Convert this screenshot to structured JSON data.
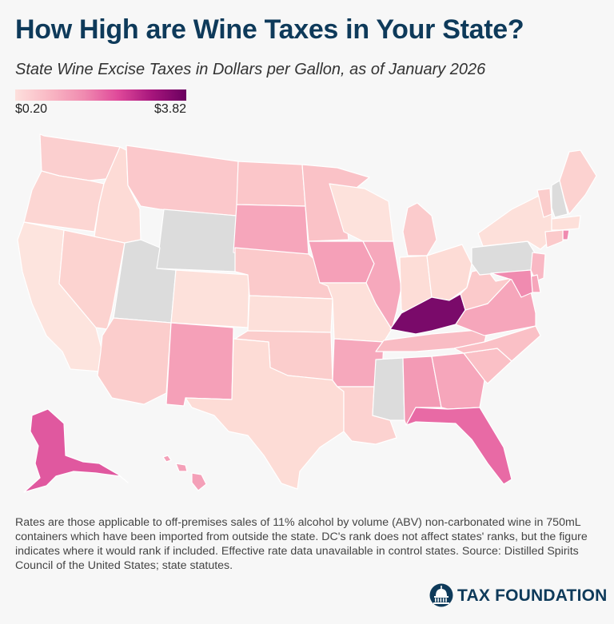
{
  "title": "How High are Wine Taxes in Your State?",
  "subtitle": "State Wine Excise Taxes in Dollars per Gallon, as of January 2026",
  "legend": {
    "min_label": "$0.20",
    "max_label": "$3.82",
    "colors": [
      "#fde0dd",
      "#f9b8c4",
      "#f08bb0",
      "#e0499a",
      "#a6157c",
      "#6a005f"
    ]
  },
  "colors": {
    "no_data": "#dcdcdc",
    "title": "#0e3a5a",
    "background": "#f7f7f7"
  },
  "map_data": {
    "min_value": 0.2,
    "max_value": 3.82,
    "states": [
      {
        "state": "WA",
        "fill": "#fbcfcf"
      },
      {
        "state": "OR",
        "fill": "#fcd6d3"
      },
      {
        "state": "CA",
        "fill": "#fde4de"
      },
      {
        "state": "NV",
        "fill": "#fcd3d0"
      },
      {
        "state": "ID",
        "fill": "#fddbd6"
      },
      {
        "state": "MT",
        "fill": "#fbc8cb"
      },
      {
        "state": "WY",
        "fill": "#dcdcdc",
        "status": "control state"
      },
      {
        "state": "UT",
        "fill": "#dcdcdc",
        "status": "control state"
      },
      {
        "state": "AZ",
        "fill": "#fbcdcc"
      },
      {
        "state": "CO",
        "fill": "#fde1db"
      },
      {
        "state": "NM",
        "fill": "#f5a0b8"
      },
      {
        "state": "ND",
        "fill": "#fbc6c9"
      },
      {
        "state": "SD",
        "fill": "#f6a6bb"
      },
      {
        "state": "NE",
        "fill": "#fbcacb"
      },
      {
        "state": "KS",
        "fill": "#fde0da"
      },
      {
        "state": "OK",
        "fill": "#fbcdcc"
      },
      {
        "state": "TX",
        "fill": "#fddcd6"
      },
      {
        "state": "MN",
        "fill": "#fac2c7"
      },
      {
        "state": "IA",
        "fill": "#f5a0b8"
      },
      {
        "state": "MO",
        "fill": "#fde0da"
      },
      {
        "state": "AR",
        "fill": "#f6a8bc"
      },
      {
        "state": "LA",
        "fill": "#fcd2d0"
      },
      {
        "state": "WI",
        "fill": "#fde2dc"
      },
      {
        "state": "IL",
        "fill": "#f6a8bc"
      },
      {
        "state": "MI",
        "fill": "#fbcbcc"
      },
      {
        "state": "IN",
        "fill": "#fdddd7"
      },
      {
        "state": "OH",
        "fill": "#fddcd6"
      },
      {
        "state": "KY",
        "fill": "#7a0a6a"
      },
      {
        "state": "TN",
        "fill": "#f9bcc4"
      },
      {
        "state": "MS",
        "fill": "#dcdcdc",
        "status": "control state"
      },
      {
        "state": "AL",
        "fill": "#f39ab5"
      },
      {
        "state": "GA",
        "fill": "#f6a6bb"
      },
      {
        "state": "FL",
        "fill": "#e86aa5"
      },
      {
        "state": "SC",
        "fill": "#fac0c6"
      },
      {
        "state": "NC",
        "fill": "#fac0c6"
      },
      {
        "state": "VA",
        "fill": "#f6a6bb"
      },
      {
        "state": "WV",
        "fill": "#fbcacb"
      },
      {
        "state": "PA",
        "fill": "#dcdcdc",
        "status": "control state"
      },
      {
        "state": "NY",
        "fill": "#fde0da"
      },
      {
        "state": "VT",
        "fill": "#fbcdcc"
      },
      {
        "state": "NH",
        "fill": "#dcdcdc",
        "status": "control state"
      },
      {
        "state": "ME",
        "fill": "#fcd2d0"
      },
      {
        "state": "MA",
        "fill": "#fde0da"
      },
      {
        "state": "RI",
        "fill": "#f08bb0"
      },
      {
        "state": "CT",
        "fill": "#fbcacb"
      },
      {
        "state": "NJ",
        "fill": "#f9b8c4"
      },
      {
        "state": "DE",
        "fill": "#f6a6bb"
      },
      {
        "state": "MD",
        "fill": "#f08bb0"
      },
      {
        "state": "AK",
        "fill": "#e0589f"
      },
      {
        "state": "HI",
        "fill": "#f4a0b8"
      }
    ]
  },
  "notes": "Rates are those applicable to off-premises sales of 11% alcohol by volume (ABV) non-carbonated wine in 750mL containers which have been imported from outside the state. DC's rank does not affect states' ranks, but the figure indicates where it would rank if included. Effective rate data unavailable in control states. Source: Distilled Spirits Council of the United States; state statutes.",
  "brand": {
    "name": "TAX FOUNDATION",
    "icon": "capitol-dome-icon"
  }
}
